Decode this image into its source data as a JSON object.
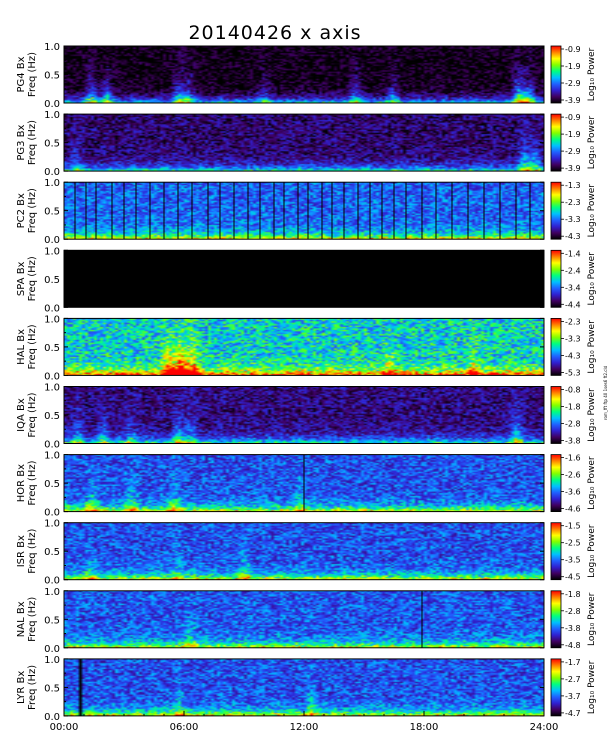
{
  "chart_data": {
    "type": "heatmap",
    "title": "20140426  x axis",
    "x_ticks": [
      "00:00",
      "06:00",
      "12:00",
      "18:00",
      "24:00"
    ],
    "xlim_hours": [
      0,
      24
    ],
    "y_ticks": [
      "0.0",
      "0.5",
      "1.0"
    ],
    "ylim_hz": [
      0,
      1.0
    ],
    "colorbar_label": "Log₁₀ Power",
    "colormap": [
      "#000000",
      "#400060",
      "#3020d0",
      "#2060ff",
      "#00c0ff",
      "#00ff80",
      "#80ff00",
      "#ffff00",
      "#ff8000",
      "#ff0000"
    ],
    "side_note": "rom_fft ftp 40 1ses6 ft2.cld",
    "panels": [
      {
        "station": "PG4",
        "ylabel": [
          "PG4 Bx",
          "Freq (Hz)"
        ],
        "cb_ticks": [
          "-0.9",
          "-1.9",
          "-2.9",
          "-3.9"
        ],
        "bg_level": 0.02,
        "noise": 0.1,
        "low_freq_level": 0.55,
        "bursts": [
          [
            1.3,
            0.6
          ],
          [
            2.1,
            0.5
          ],
          [
            5.7,
            0.6
          ],
          [
            6.2,
            0.5
          ],
          [
            10.0,
            0.3
          ],
          [
            14.6,
            0.5
          ],
          [
            16.5,
            0.4
          ],
          [
            22.8,
            0.8
          ],
          [
            23.3,
            0.7
          ]
        ],
        "vlines": [],
        "dark": false
      },
      {
        "station": "PG3",
        "ylabel": [
          "PG3 Bx",
          "Freq (Hz)"
        ],
        "cb_ticks": [
          "-0.9",
          "-1.9",
          "-2.9",
          "-3.9"
        ],
        "bg_level": 0.12,
        "noise": 0.12,
        "low_freq_level": 0.5,
        "bursts": [
          [
            0.6,
            0.3
          ],
          [
            23.1,
            0.6
          ],
          [
            23.6,
            0.5
          ]
        ],
        "vlines": [],
        "dark": false
      },
      {
        "station": "PC2",
        "ylabel": [
          "PC2 Bx",
          "Freq (Hz)"
        ],
        "cb_ticks": [
          "-1.3",
          "-2.3",
          "-3.3",
          "-4.3"
        ],
        "bg_level": 0.33,
        "noise": 0.14,
        "low_freq_level": 0.55,
        "bursts": [],
        "vlines": [
          0.55,
          1.1,
          1.6,
          2.4,
          3.0,
          3.6,
          4.3,
          5.0,
          5.7,
          6.4,
          7.2,
          7.8,
          8.5,
          9.2,
          9.8,
          10.5,
          11.0,
          11.7,
          12.2,
          12.9,
          13.4,
          14.0,
          14.7,
          15.3,
          15.9,
          16.5,
          17.1,
          17.9,
          18.6,
          19.4,
          20.2,
          21.0,
          21.8,
          22.6,
          23.3
        ],
        "dark": false
      },
      {
        "station": "SPA",
        "ylabel": [
          "SPA Bx",
          "Freq (Hz)"
        ],
        "cb_ticks": [
          "-1.4",
          "-2.4",
          "-3.4",
          "-4.4"
        ],
        "bg_level": 0.0,
        "noise": 0.0,
        "low_freq_level": 0.0,
        "bursts": [],
        "vlines": [],
        "dark": true
      },
      {
        "station": "HAL",
        "ylabel": [
          "HAL Bx",
          "Freq (Hz)"
        ],
        "cb_ticks": [
          "-2.3",
          "-3.3",
          "-4.3",
          "-5.3"
        ],
        "bg_level": 0.48,
        "noise": 0.18,
        "low_freq_level": 0.6,
        "bursts": [
          [
            5.2,
            0.9
          ],
          [
            5.8,
            1.0
          ],
          [
            6.4,
            0.8
          ],
          [
            16.3,
            0.4
          ],
          [
            20.5,
            0.4
          ]
        ],
        "vlines": [],
        "dark": false
      },
      {
        "station": "IQA",
        "ylabel": [
          "IQA Bx",
          "Freq (Hz)"
        ],
        "cb_ticks": [
          "-0.8",
          "-1.8",
          "-2.8",
          "-3.8"
        ],
        "bg_level": 0.14,
        "noise": 0.12,
        "low_freq_level": 0.5,
        "bursts": [
          [
            0.6,
            0.4
          ],
          [
            1.9,
            0.4
          ],
          [
            3.3,
            0.3
          ],
          [
            5.7,
            0.5
          ],
          [
            6.3,
            0.4
          ],
          [
            22.7,
            0.6
          ]
        ],
        "vlines": [],
        "dark": false
      },
      {
        "station": "HOR",
        "ylabel": [
          "HOR Bx",
          "Freq (Hz)"
        ],
        "cb_ticks": [
          "-1.6",
          "-2.6",
          "-3.6",
          "-4.6"
        ],
        "bg_level": 0.3,
        "noise": 0.14,
        "low_freq_level": 0.55,
        "bursts": [
          [
            1.3,
            0.4
          ],
          [
            3.3,
            0.4
          ],
          [
            5.5,
            0.4
          ],
          [
            11.8,
            0.3
          ]
        ],
        "vlines": [
          12.0
        ],
        "dark": false
      },
      {
        "station": "ISR",
        "ylabel": [
          "ISR Bx",
          "Freq (Hz)"
        ],
        "cb_ticks": [
          "-1.5",
          "-2.5",
          "-3.5",
          "-4.5"
        ],
        "bg_level": 0.3,
        "noise": 0.14,
        "low_freq_level": 0.55,
        "bursts": [
          [
            1.2,
            0.3
          ],
          [
            5.6,
            0.3
          ],
          [
            9.0,
            0.3
          ]
        ],
        "vlines": [],
        "dark": false
      },
      {
        "station": "NAL",
        "ylabel": [
          "NAL Bx",
          "Freq (Hz)"
        ],
        "cb_ticks": [
          "-1.8",
          "-2.8",
          "-3.8",
          "-4.8"
        ],
        "bg_level": 0.31,
        "noise": 0.14,
        "low_freq_level": 0.52,
        "bursts": [
          [
            6.3,
            0.3
          ]
        ],
        "vlines": [
          17.9
        ],
        "dark": false
      },
      {
        "station": "LYR",
        "ylabel": [
          "LYR Bx",
          "Freq (Hz)"
        ],
        "cb_ticks": [
          "-1.7",
          "-2.7",
          "-3.7",
          "-4.7"
        ],
        "bg_level": 0.3,
        "noise": 0.14,
        "low_freq_level": 0.55,
        "bursts": [
          [
            5.7,
            0.3
          ],
          [
            12.4,
            0.3
          ]
        ],
        "vlines": [],
        "dark": false,
        "gap_hours": [
          0.65,
          0.85
        ]
      }
    ]
  }
}
